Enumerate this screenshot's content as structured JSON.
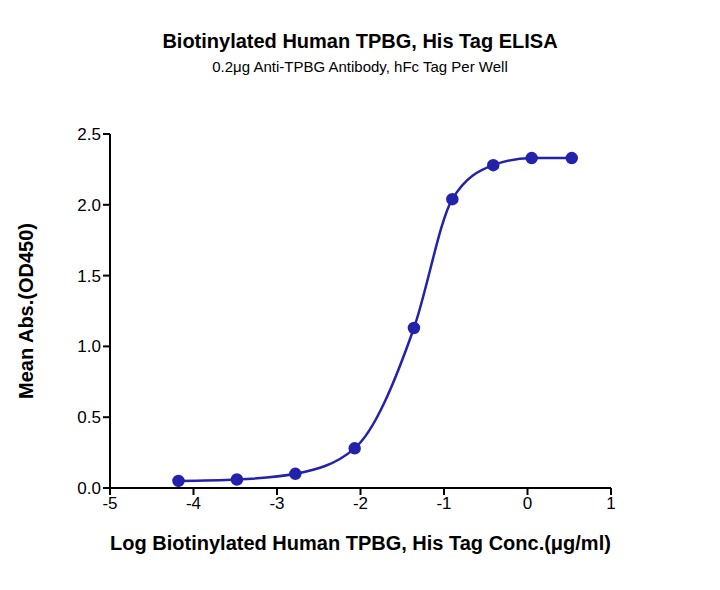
{
  "chart_data": {
    "type": "line",
    "title": "Biotinylated Human TPBG, His Tag ELISA",
    "subtitle": "0.2μg Anti-TPBG Antibody, hFc Tag Per Well",
    "x_label": "Log Biotinylated Human TPBG, His Tag Conc.(μg/ml)",
    "y_label": "Mean Abs.(OD450)",
    "series": [
      {
        "name": "Biotinylated Human TPBG, His Tag",
        "color": "#2222aa",
        "marker": "circle",
        "line_style": "solid",
        "x": [
          -4.18,
          -3.48,
          -2.78,
          -2.07,
          -1.36,
          -0.9,
          -0.41,
          0.05,
          0.53
        ],
        "values": [
          0.05,
          0.06,
          0.1,
          0.28,
          1.13,
          2.04,
          2.28,
          2.33,
          2.33
        ]
      }
    ],
    "xlim": [
      -5,
      1
    ],
    "xticks": [
      -5,
      -4,
      -3,
      -2,
      -1,
      0,
      1
    ],
    "ylim": [
      0,
      2.5
    ],
    "yticks": [
      {
        "value": 0,
        "label": "0.0"
      },
      {
        "value": 0.5,
        "label": "0.5"
      },
      {
        "value": 1,
        "label": "1.0"
      },
      {
        "value": 1.5,
        "label": "1.5"
      },
      {
        "value": 2,
        "label": "2.0"
      },
      {
        "value": 2.5,
        "label": "2.5"
      }
    ],
    "grid": false
  }
}
